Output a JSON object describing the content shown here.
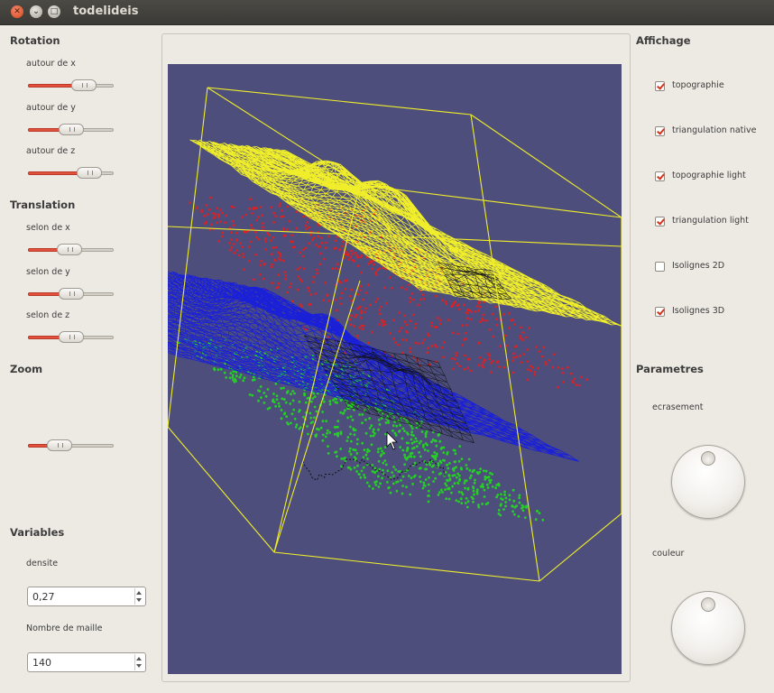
{
  "window": {
    "title": "todelideis"
  },
  "left": {
    "rotation": {
      "title": "Rotation",
      "items": [
        {
          "label": "autour de x",
          "value": 0.72
        },
        {
          "label": "autour de y",
          "value": 0.5
        },
        {
          "label": "autour de z",
          "value": 0.8
        }
      ]
    },
    "translation": {
      "title": "Translation",
      "items": [
        {
          "label": "selon de x",
          "value": 0.48
        },
        {
          "label": "selon de y",
          "value": 0.5
        },
        {
          "label": "selon de z",
          "value": 0.5
        }
      ]
    },
    "zoom": {
      "title": "Zoom",
      "value": 0.32
    },
    "variables": {
      "title": "Variables",
      "densite_label": "densite",
      "densite_value": "0,27",
      "maille_label": "Nombre de maille",
      "maille_value": "140"
    }
  },
  "right": {
    "affichage": {
      "title": "Affichage",
      "options": [
        {
          "label": "topographie",
          "checked": true
        },
        {
          "label": "triangulation native",
          "checked": true
        },
        {
          "label": "topographie light",
          "checked": true
        },
        {
          "label": "triangulation light",
          "checked": true
        },
        {
          "label": "Isolignes 2D",
          "checked": false
        },
        {
          "label": "Isolignes 3D",
          "checked": true
        }
      ]
    },
    "parametres": {
      "title": "Parametres",
      "dials": [
        {
          "label": "ecrasement"
        },
        {
          "label": "couleur"
        }
      ]
    }
  },
  "colors": {
    "viewport_bg": "#4d4e7c",
    "yellow": "#f0ee2a",
    "red": "#e02020",
    "blue": "#1a20d8",
    "green": "#25d025",
    "dark": "#111111"
  }
}
